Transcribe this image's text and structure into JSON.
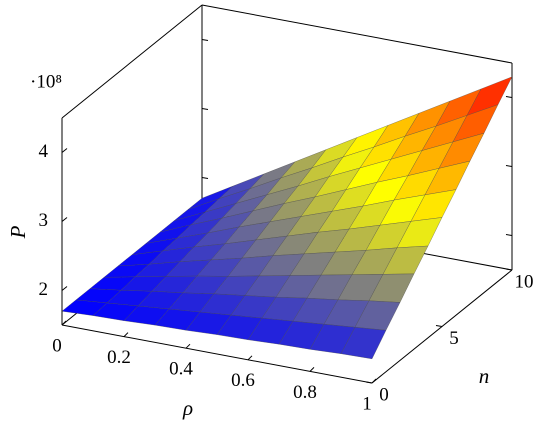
{
  "chart_data": {
    "type": "surface",
    "xlabel": "ρ",
    "ylabel": "n",
    "zlabel": "P",
    "zmultiplier": "·10⁸",
    "xlim": [
      0,
      1
    ],
    "ylim": [
      0,
      10
    ],
    "zlim": [
      1.5,
      4.5
    ],
    "xticks": [
      0,
      0.2,
      0.4,
      0.6,
      0.8,
      1
    ],
    "yticks": [
      0,
      5,
      10
    ],
    "zticks": [
      2,
      3,
      4
    ],
    "colormap": [
      "#0000ff",
      "#ffff00",
      "#ff0000"
    ],
    "x": [
      0,
      0.1,
      0.2,
      0.3,
      0.4,
      0.5,
      0.6,
      0.7,
      0.8,
      0.9,
      1
    ],
    "y": [
      0,
      1,
      2,
      3,
      4,
      5,
      6,
      7,
      8,
      9,
      10
    ],
    "z": [
      [
        1.7,
        1.72,
        1.73,
        1.75,
        1.76,
        1.78,
        1.79,
        1.81,
        1.82,
        1.84,
        1.85
      ],
      [
        1.7,
        1.74,
        1.78,
        1.82,
        1.86,
        1.9,
        1.94,
        1.98,
        2.02,
        2.06,
        2.1
      ],
      [
        1.7,
        1.76,
        1.83,
        1.89,
        1.96,
        2.02,
        2.08,
        2.15,
        2.21,
        2.28,
        2.34
      ],
      [
        1.7,
        1.79,
        1.88,
        1.97,
        2.05,
        2.14,
        2.23,
        2.32,
        2.41,
        2.5,
        2.59
      ],
      [
        1.7,
        1.81,
        1.93,
        2.04,
        2.15,
        2.27,
        2.38,
        2.49,
        2.6,
        2.72,
        2.83
      ],
      [
        1.7,
        1.84,
        1.98,
        2.11,
        2.25,
        2.39,
        2.53,
        2.66,
        2.8,
        2.94,
        3.08
      ],
      [
        1.7,
        1.86,
        2.02,
        2.19,
        2.35,
        2.51,
        2.67,
        2.83,
        3.0,
        3.16,
        3.32
      ],
      [
        1.7,
        1.89,
        2.07,
        2.26,
        2.45,
        2.63,
        2.82,
        3.01,
        3.19,
        3.38,
        3.57
      ],
      [
        1.7,
        1.91,
        2.12,
        2.33,
        2.54,
        2.76,
        2.97,
        3.18,
        3.39,
        3.6,
        3.81
      ],
      [
        1.7,
        1.94,
        2.17,
        2.41,
        2.64,
        2.88,
        3.11,
        3.35,
        3.58,
        3.82,
        4.06
      ],
      [
        1.7,
        1.96,
        2.22,
        2.48,
        2.74,
        3.0,
        3.26,
        3.52,
        3.78,
        4.04,
        4.3
      ]
    ]
  }
}
